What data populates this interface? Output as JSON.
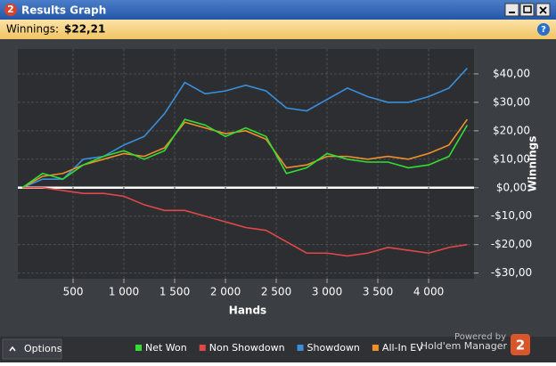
{
  "window": {
    "icon": "2",
    "title": "Results Graph",
    "winnings_label": "Winnings:",
    "winnings_value": "$22,21",
    "help": "?",
    "options": "Options",
    "powered_by": "Powered by",
    "brand": "Hold'em Manager",
    "brand_badge": "2"
  },
  "chart_data": {
    "type": "line",
    "x_label": "Hands",
    "y_label": "Winnings",
    "x": [
      0,
      200,
      400,
      600,
      800,
      1000,
      1200,
      1400,
      1600,
      1800,
      2000,
      2200,
      2400,
      2600,
      2800,
      3000,
      3200,
      3400,
      3600,
      3800,
      4000,
      4200,
      4380
    ],
    "series": [
      {
        "name": "Net Won",
        "color": "#33dd33",
        "values": [
          0,
          5,
          3,
          8,
          11,
          13,
          10,
          13,
          24,
          22,
          18,
          21,
          18,
          5,
          7,
          12,
          10,
          9,
          9,
          7,
          8,
          11,
          22
        ]
      },
      {
        "name": "Non Showdown",
        "color": "#e04848",
        "values": [
          0,
          0,
          -1,
          -2,
          -2,
          -3,
          -6,
          -8,
          -8,
          -10,
          -12,
          -14,
          -15,
          -19,
          -23,
          -23,
          -24,
          -23,
          -21,
          -22,
          -23,
          -21,
          -20
        ]
      },
      {
        "name": "Showdown",
        "color": "#3a8fdc",
        "values": [
          0,
          3,
          3,
          10,
          11,
          15,
          18,
          26,
          37,
          33,
          34,
          36,
          34,
          28,
          27,
          31,
          35,
          32,
          30,
          30,
          32,
          35,
          42
        ]
      },
      {
        "name": "All-In EV",
        "color": "#f0902a",
        "values": [
          0,
          4,
          5,
          8,
          10,
          12,
          11,
          14,
          23,
          21,
          19,
          20,
          17,
          7,
          8,
          11,
          11,
          10,
          11,
          10,
          12,
          15,
          24
        ]
      }
    ],
    "xlim": [
      -44,
      4447
    ],
    "ylim": [
      -32,
      48.75
    ],
    "xticks": [
      500,
      {
        "value": 1000,
        "label": "1 000"
      },
      {
        "value": 1500,
        "label": "1 500"
      },
      {
        "value": 2000,
        "label": "2 000"
      },
      {
        "value": 2500,
        "label": "2 500"
      },
      {
        "value": 3000,
        "label": "3 000"
      },
      {
        "value": 3500,
        "label": "3 500"
      },
      {
        "value": 4000,
        "label": "4 000"
      }
    ],
    "yticks": [
      {
        "value": 40,
        "label": "$40,00"
      },
      {
        "value": 30,
        "label": "$30,00"
      },
      {
        "value": 20,
        "label": "$20,00"
      },
      {
        "value": 10,
        "label": "$10,00"
      },
      {
        "value": 0,
        "label": "$0,00"
      },
      {
        "value": -10,
        "label": "-$10,00"
      },
      {
        "value": -20,
        "label": "-$20,00"
      },
      {
        "value": -30,
        "label": "-$30,00"
      }
    ],
    "grid": true
  }
}
